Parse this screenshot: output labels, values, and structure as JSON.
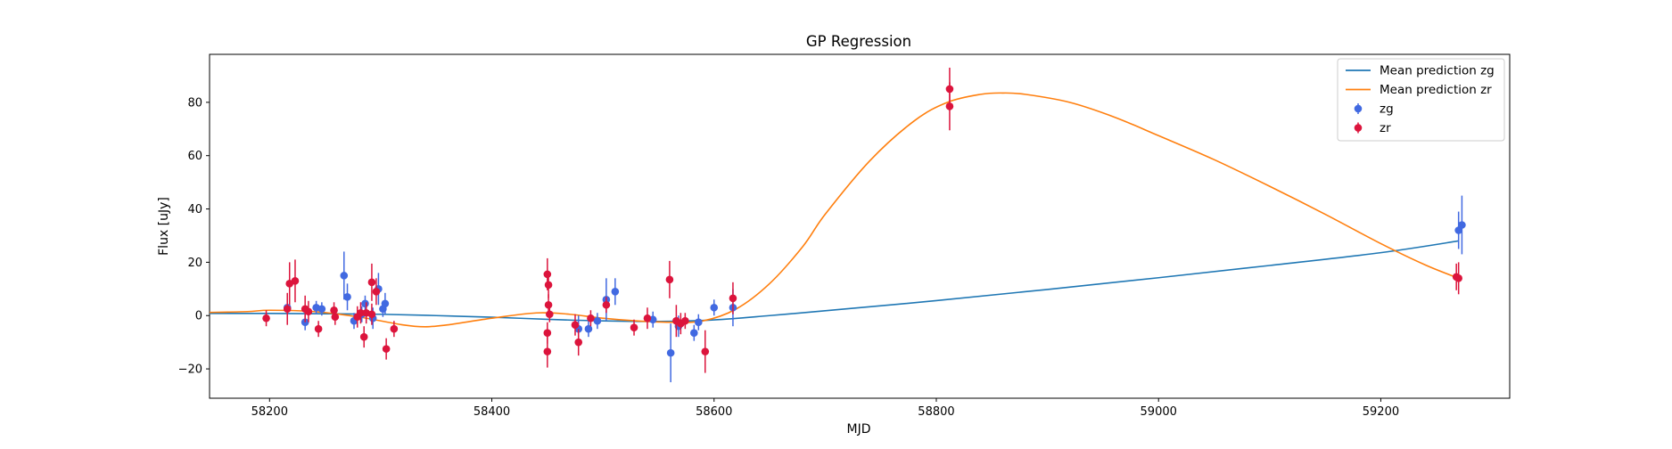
{
  "chart_data": {
    "type": "scatter",
    "title": "GP Regression",
    "xlabel": "MJD",
    "ylabel": "Flux [uJy]",
    "xlim": [
      58146,
      59316
    ],
    "ylim": [
      -31,
      98
    ],
    "xticks": [
      58200,
      58400,
      58600,
      58800,
      59000,
      59200
    ],
    "yticks": [
      -20,
      0,
      20,
      40,
      60,
      80
    ],
    "grid": false,
    "legend_position": "top-right",
    "colors": {
      "zg_line": "#1f77b4",
      "zr_line": "#ff7f0e",
      "zg_points": "#4169e1",
      "zr_points": "#dc143c"
    },
    "legend": [
      {
        "label": "Mean prediction zg",
        "kind": "line",
        "color": "#1f77b4"
      },
      {
        "label": "Mean prediction zr",
        "kind": "line",
        "color": "#ff7f0e"
      },
      {
        "label": "zg",
        "kind": "errorbar",
        "color": "#4169e1"
      },
      {
        "label": "zr",
        "kind": "errorbar",
        "color": "#dc143c"
      }
    ],
    "series": [
      {
        "name": "Mean prediction zg",
        "kind": "line",
        "x": [
          58146,
          58200,
          58250,
          58300,
          58350,
          58400,
          58450,
          58500,
          58550,
          58600,
          58650,
          58700,
          58800,
          58900,
          59000,
          59100,
          59200,
          59270
        ],
        "y": [
          0.8,
          0.8,
          0.7,
          0.5,
          0.0,
          -0.6,
          -1.4,
          -2.0,
          -2.2,
          -1.6,
          0.0,
          1.8,
          5.6,
          9.8,
          14.2,
          18.8,
          23.6,
          28.0
        ]
      },
      {
        "name": "Mean prediction zr",
        "kind": "line",
        "x": [
          58146,
          58180,
          58200,
          58240,
          58280,
          58320,
          58340,
          58360,
          58400,
          58440,
          58470,
          58500,
          58530,
          58560,
          58590,
          58620,
          58650,
          58680,
          58700,
          58740,
          58780,
          58810,
          58840,
          58860,
          58880,
          58920,
          58960,
          59000,
          59050,
          59100,
          59150,
          59200,
          59240,
          59270
        ],
        "y": [
          1.2,
          1.5,
          2.0,
          1.5,
          -0.5,
          -3.5,
          -4.2,
          -3.5,
          -1.0,
          1.0,
          0.5,
          -1.0,
          -2.0,
          -2.5,
          -2.0,
          2.5,
          12.0,
          26.0,
          38.0,
          58.0,
          73.0,
          80.0,
          83.0,
          83.5,
          83.0,
          80.0,
          74.5,
          67.5,
          58.5,
          48.5,
          38.0,
          27.0,
          19.0,
          14.0
        ]
      },
      {
        "name": "zg",
        "kind": "errorbar",
        "points": [
          {
            "x": 58216,
            "y": 3.0,
            "err": 3
          },
          {
            "x": 58232,
            "y": -2.5,
            "err": 3
          },
          {
            "x": 58242,
            "y": 3.0,
            "err": 2.5
          },
          {
            "x": 58247,
            "y": 2.5,
            "err": 2.5
          },
          {
            "x": 58267,
            "y": 15.0,
            "err": 9
          },
          {
            "x": 58270,
            "y": 7.0,
            "err": 5
          },
          {
            "x": 58276,
            "y": -2.0,
            "err": 3
          },
          {
            "x": 58283,
            "y": 0.5,
            "err": 3
          },
          {
            "x": 58286,
            "y": 4.5,
            "err": 3
          },
          {
            "x": 58293,
            "y": -1.0,
            "err": 4
          },
          {
            "x": 58298,
            "y": 10.0,
            "err": 6
          },
          {
            "x": 58302,
            "y": 2.5,
            "err": 3
          },
          {
            "x": 58304,
            "y": 4.5,
            "err": 4
          },
          {
            "x": 58478,
            "y": -5.0,
            "err": 5
          },
          {
            "x": 58487,
            "y": -5.0,
            "err": 3
          },
          {
            "x": 58495,
            "y": -2.0,
            "err": 3
          },
          {
            "x": 58503,
            "y": 6.0,
            "err": 8
          },
          {
            "x": 58511,
            "y": 9.0,
            "err": 5
          },
          {
            "x": 58545,
            "y": -1.5,
            "err": 3
          },
          {
            "x": 58561,
            "y": -14.0,
            "err": 11
          },
          {
            "x": 58568,
            "y": -4.0,
            "err": 4
          },
          {
            "x": 58582,
            "y": -6.5,
            "err": 3
          },
          {
            "x": 58586,
            "y": -2.5,
            "err": 3
          },
          {
            "x": 58600,
            "y": 3.0,
            "err": 3
          },
          {
            "x": 58617,
            "y": 3.0,
            "err": 7
          },
          {
            "x": 59270,
            "y": 32.0,
            "err": 7
          },
          {
            "x": 59273,
            "y": 34.0,
            "err": 11
          }
        ]
      },
      {
        "name": "zr",
        "kind": "errorbar",
        "points": [
          {
            "x": 58197,
            "y": -1.0,
            "err": 3
          },
          {
            "x": 58216,
            "y": 2.5,
            "err": 6
          },
          {
            "x": 58218,
            "y": 12.0,
            "err": 8
          },
          {
            "x": 58223,
            "y": 13.0,
            "err": 8
          },
          {
            "x": 58232,
            "y": 2.5,
            "err": 5
          },
          {
            "x": 58235,
            "y": 1.5,
            "err": 4
          },
          {
            "x": 58244,
            "y": -5.0,
            "err": 3
          },
          {
            "x": 58258,
            "y": 2.0,
            "err": 3
          },
          {
            "x": 58259,
            "y": -0.5,
            "err": 3
          },
          {
            "x": 58279,
            "y": -0.5,
            "err": 4
          },
          {
            "x": 58282,
            "y": 1.0,
            "err": 4
          },
          {
            "x": 58285,
            "y": -8.0,
            "err": 4
          },
          {
            "x": 58287,
            "y": 1.0,
            "err": 4
          },
          {
            "x": 58292,
            "y": 0.5,
            "err": 4
          },
          {
            "x": 58292,
            "y": 12.5,
            "err": 7
          },
          {
            "x": 58296,
            "y": 9.0,
            "err": 5
          },
          {
            "x": 58305,
            "y": -12.5,
            "err": 4
          },
          {
            "x": 58312,
            "y": -5.0,
            "err": 3
          },
          {
            "x": 58450,
            "y": 15.5,
            "err": 6
          },
          {
            "x": 58451,
            "y": 11.5,
            "err": 5
          },
          {
            "x": 58450,
            "y": -13.5,
            "err": 6
          },
          {
            "x": 58450,
            "y": -6.5,
            "err": 4
          },
          {
            "x": 58451,
            "y": 4.0,
            "err": 4
          },
          {
            "x": 58452,
            "y": 0.5,
            "err": 3
          },
          {
            "x": 58475,
            "y": -3.5,
            "err": 4
          },
          {
            "x": 58478,
            "y": -10.0,
            "err": 5
          },
          {
            "x": 58489,
            "y": -1.0,
            "err": 3
          },
          {
            "x": 58503,
            "y": 4.0,
            "err": 3
          },
          {
            "x": 58528,
            "y": -4.5,
            "err": 3
          },
          {
            "x": 58540,
            "y": -1.0,
            "err": 4
          },
          {
            "x": 58560,
            "y": 13.5,
            "err": 7
          },
          {
            "x": 58566,
            "y": -2.0,
            "err": 6
          },
          {
            "x": 58570,
            "y": -3.0,
            "err": 4
          },
          {
            "x": 58574,
            "y": -2.0,
            "err": 3
          },
          {
            "x": 58592,
            "y": -13.5,
            "err": 8
          },
          {
            "x": 58617,
            "y": 6.5,
            "err": 6
          },
          {
            "x": 58812,
            "y": 85.0,
            "err": 8
          },
          {
            "x": 58812,
            "y": 78.5,
            "err": 9
          },
          {
            "x": 59268,
            "y": 14.5,
            "err": 5
          },
          {
            "x": 59270,
            "y": 14.0,
            "err": 6
          }
        ]
      }
    ]
  }
}
